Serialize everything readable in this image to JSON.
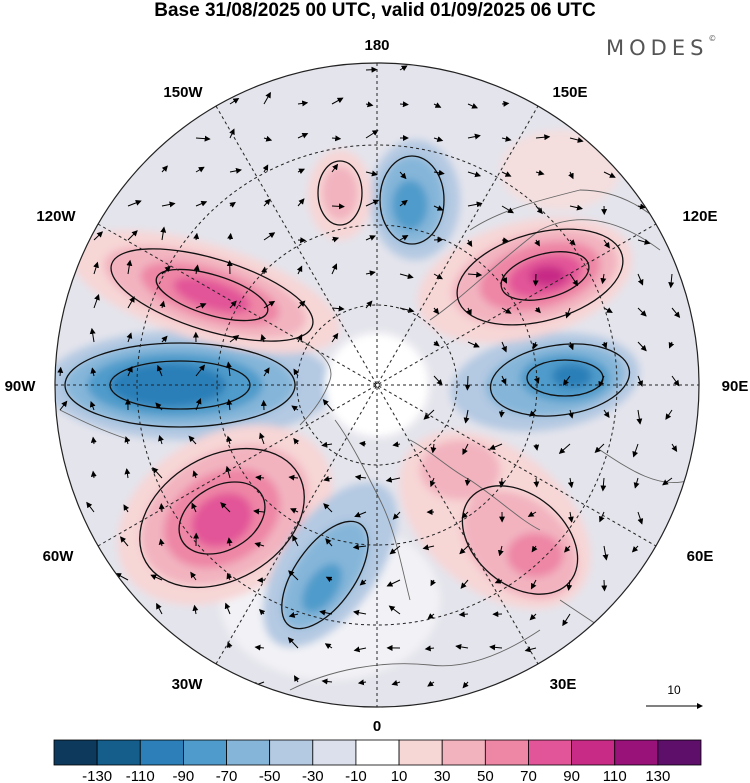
{
  "title": "Base 31/08/2025 00 UTC, valid 01/09/2025 06 UTC",
  "brand": "MODES",
  "brand_mark": "©",
  "longitudes": {
    "n180": "180",
    "n150e": "150E",
    "n120e": "120E",
    "n90e": "90E",
    "n60e": "60E",
    "n30e": "30E",
    "n0": "0",
    "n30w": "30W",
    "n60w": "60W",
    "n90w": "90W",
    "n120w": "120W",
    "n150w": "150W"
  },
  "vector_reference": "10",
  "colorbar": {
    "colors": [
      "#0d3a5c",
      "#155e8c",
      "#2c7fb8",
      "#4f9bcb",
      "#85b6d9",
      "#b4c9e2",
      "#dcdfec",
      "#ffffff",
      "#f7d6d6",
      "#f2b3bf",
      "#ee86a6",
      "#e25598",
      "#c72b86",
      "#98127a",
      "#5d0f6a"
    ],
    "labels": [
      "-130",
      "-110",
      "-90",
      "-70",
      "-50",
      "-30",
      "-10",
      "10",
      "30",
      "50",
      "70",
      "90",
      "110",
      "130"
    ]
  }
}
